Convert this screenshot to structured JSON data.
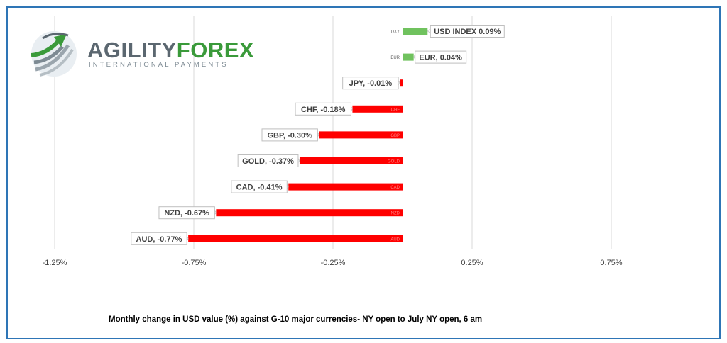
{
  "logo": {
    "brand_part1": "AGILITY",
    "brand_part2": "FOREX",
    "tagline": "INTERNATIONAL PAYMENTS",
    "colors": {
      "grey": "#5b6770",
      "green": "#3a9a3a"
    }
  },
  "caption": "Monthly change in  USD value (%)  against  G-10 major currencies-  NY open to July NY open, 6 am",
  "chart_data": {
    "type": "bar",
    "orientation": "horizontal",
    "categories": [
      "DXY",
      "EUR",
      "JPY",
      "CHF",
      "GBP",
      "GOLD",
      "CAD",
      "NZD",
      "AUD"
    ],
    "values": [
      0.09,
      0.04,
      -0.01,
      -0.18,
      -0.3,
      -0.37,
      -0.41,
      -0.67,
      -0.77
    ],
    "data_labels": [
      "USD INDEX 0.09%",
      "EUR, 0.04%",
      "JPY, -0.01%",
      "CHF, -0.18%",
      "GBP, -0.30%",
      "GOLD, -0.37%",
      "CAD, -0.41%",
      "NZD, -0.67%",
      "AUD, -0.77%"
    ],
    "x_ticks": [
      -1.25,
      -0.75,
      -0.25,
      0.25,
      0.75
    ],
    "x_tick_labels": [
      "-1.25%",
      "-0.75%",
      "-0.25%",
      "0.25%",
      "0.75%"
    ],
    "xlim": [
      -1.5,
      0.75
    ],
    "grid": "vertical",
    "colors": {
      "positive": "#70c25e",
      "negative": "#ff0000",
      "grid": "#d9d9d9"
    }
  }
}
